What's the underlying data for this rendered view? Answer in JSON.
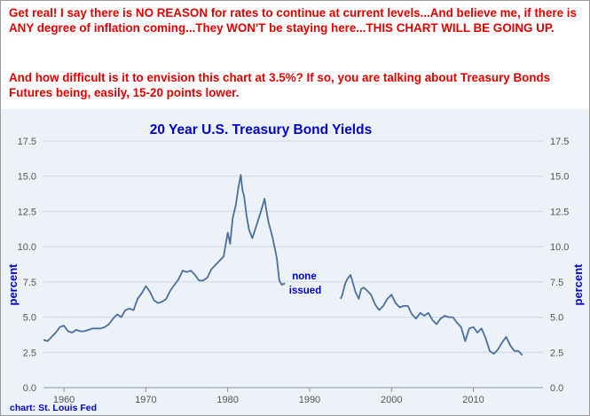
{
  "notes": {
    "paragraph1": "Get real! I say there is NO REASON for rates to continue at current levels...And believe me, if there is ANY degree of inflation coming...They WON'T be staying here...THIS CHART WILL BE GOING UP.",
    "paragraph2": "And how difficult is it to envision this chart at 3.5%? If so, you are talking about Treasury Bonds Futures being, easily, 15-20 points lower."
  },
  "credit": "chart: St. Louis Fed",
  "colors": {
    "note_text": "#e00000",
    "title": "#0000cc",
    "series_line": "#4a6f9e",
    "panel_bg": "#edf2f8",
    "grid": "#cfd6de"
  },
  "chart_data": {
    "type": "line",
    "title": "20 Year U.S. Treasury Bond Yields",
    "ylabel_left": "percent",
    "ylabel_right": "percent",
    "annotation": [
      "none",
      "issued"
    ],
    "xlim": [
      1957.5,
      2018.5
    ],
    "ylim": [
      0,
      17.5
    ],
    "x_ticks": [
      1960,
      1970,
      1980,
      1990,
      2000,
      2010
    ],
    "x_tick_labels": [
      "1960",
      "1970",
      "1980",
      "1990",
      "2000",
      "2010"
    ],
    "y_ticks": [
      0,
      2.5,
      5,
      7.5,
      10,
      12.5,
      15,
      17.5
    ],
    "y_tick_labels": [
      "0.0",
      "2.5",
      "5.0",
      "7.5",
      "10.0",
      "12.5",
      "15.0",
      "17.5"
    ],
    "grid": "horizontal",
    "series": [
      {
        "segments": [
          {
            "x": [
              1957.5,
              1958.0,
              1958.5,
              1959.0,
              1959.5,
              1960.0,
              1960.5,
              1961.0,
              1961.5,
              1962.0,
              1962.5,
              1963.0,
              1963.5,
              1964.0,
              1964.5,
              1965.0,
              1965.5,
              1966.0,
              1966.5,
              1967.0,
              1967.5,
              1968.0,
              1968.5,
              1969.0,
              1969.5,
              1970.0,
              1970.5,
              1971.0,
              1971.5,
              1972.0,
              1972.5,
              1973.0,
              1973.5,
              1974.0,
              1974.5,
              1975.0,
              1975.5,
              1976.0,
              1976.5,
              1977.0,
              1977.5,
              1978.0,
              1978.5,
              1979.0,
              1979.5,
              1980.0,
              1980.3,
              1980.6,
              1981.0,
              1981.3,
              1981.6,
              1981.8,
              1982.0,
              1982.3,
              1982.6,
              1983.0,
              1983.5,
              1984.0,
              1984.5,
              1984.8,
              1985.0,
              1985.5,
              1986.0,
              1986.3,
              1986.6,
              1987.0
            ],
            "y": [
              3.4,
              3.3,
              3.6,
              3.9,
              4.3,
              4.4,
              4.0,
              3.9,
              4.1,
              4.0,
              4.0,
              4.1,
              4.2,
              4.2,
              4.2,
              4.3,
              4.5,
              4.9,
              5.2,
              5.0,
              5.5,
              5.6,
              5.5,
              6.3,
              6.7,
              7.2,
              6.8,
              6.2,
              6.0,
              6.1,
              6.3,
              6.9,
              7.3,
              7.7,
              8.3,
              8.2,
              8.3,
              8.0,
              7.6,
              7.6,
              7.8,
              8.4,
              8.7,
              9.0,
              9.3,
              11.0,
              10.2,
              12.0,
              13.0,
              14.2,
              15.1,
              14.0,
              13.6,
              12.2,
              11.2,
              10.6,
              11.5,
              12.4,
              13.4,
              12.3,
              11.7,
              10.6,
              9.2,
              7.6,
              7.3,
              7.4
            ]
          },
          {
            "x": [
              1993.8,
              1994.0,
              1994.3,
              1994.6,
              1995.0,
              1995.3,
              1995.6,
              1996.0,
              1996.3,
              1996.6,
              1997.0,
              1997.5,
              1998.0,
              1998.5,
              1999.0,
              1999.5,
              2000.0,
              2000.5,
              2001.0,
              2001.5,
              2002.0,
              2002.5,
              2003.0,
              2003.5,
              2004.0,
              2004.5,
              2005.0,
              2005.5,
              2006.0,
              2006.5,
              2007.0,
              2007.5,
              2008.0,
              2008.5,
              2009.0,
              2009.5,
              2010.0,
              2010.5,
              2011.0,
              2011.5,
              2012.0,
              2012.5,
              2013.0,
              2013.5,
              2014.0,
              2014.5,
              2015.0,
              2015.5,
              2016.0
            ],
            "y": [
              6.3,
              6.6,
              7.3,
              7.7,
              8.0,
              7.4,
              6.8,
              6.3,
              7.0,
              7.1,
              6.9,
              6.6,
              5.9,
              5.5,
              5.8,
              6.3,
              6.6,
              6.0,
              5.7,
              5.8,
              5.8,
              5.2,
              4.9,
              5.3,
              5.1,
              5.3,
              4.8,
              4.5,
              4.9,
              5.1,
              5.0,
              5.0,
              4.6,
              4.3,
              3.3,
              4.2,
              4.3,
              3.9,
              4.2,
              3.5,
              2.6,
              2.4,
              2.7,
              3.2,
              3.6,
              3.0,
              2.6,
              2.6,
              2.3
            ]
          }
        ]
      }
    ]
  }
}
